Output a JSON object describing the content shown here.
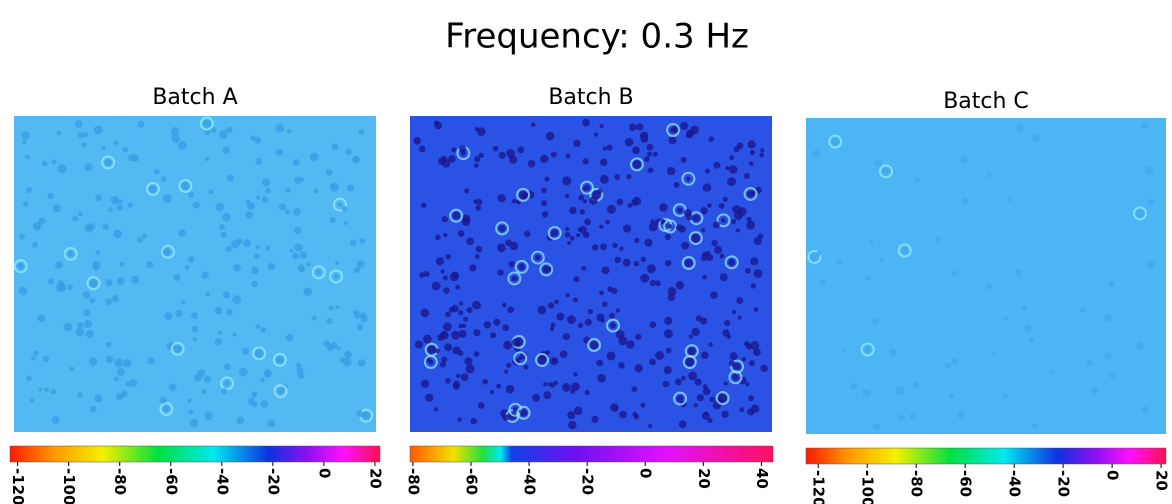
{
  "title": "Frequency: 0.3 Hz",
  "panels": [
    {
      "title": "Batch A",
      "colorbar": {
        "lim": [
          -123,
          22
        ],
        "ticks": [
          -120,
          -100,
          -80,
          -60,
          -40,
          -20,
          0,
          20
        ]
      }
    },
    {
      "title": "Batch B",
      "colorbar": {
        "lim": [
          -81,
          44
        ],
        "ticks": [
          -80,
          -60,
          -40,
          -20,
          0,
          20,
          40
        ]
      }
    },
    {
      "title": "Batch C",
      "colorbar": {
        "lim": [
          -125,
          22
        ],
        "ticks": [
          -120,
          -100,
          -80,
          -60,
          -40,
          -20,
          0,
          20
        ]
      }
    }
  ]
}
